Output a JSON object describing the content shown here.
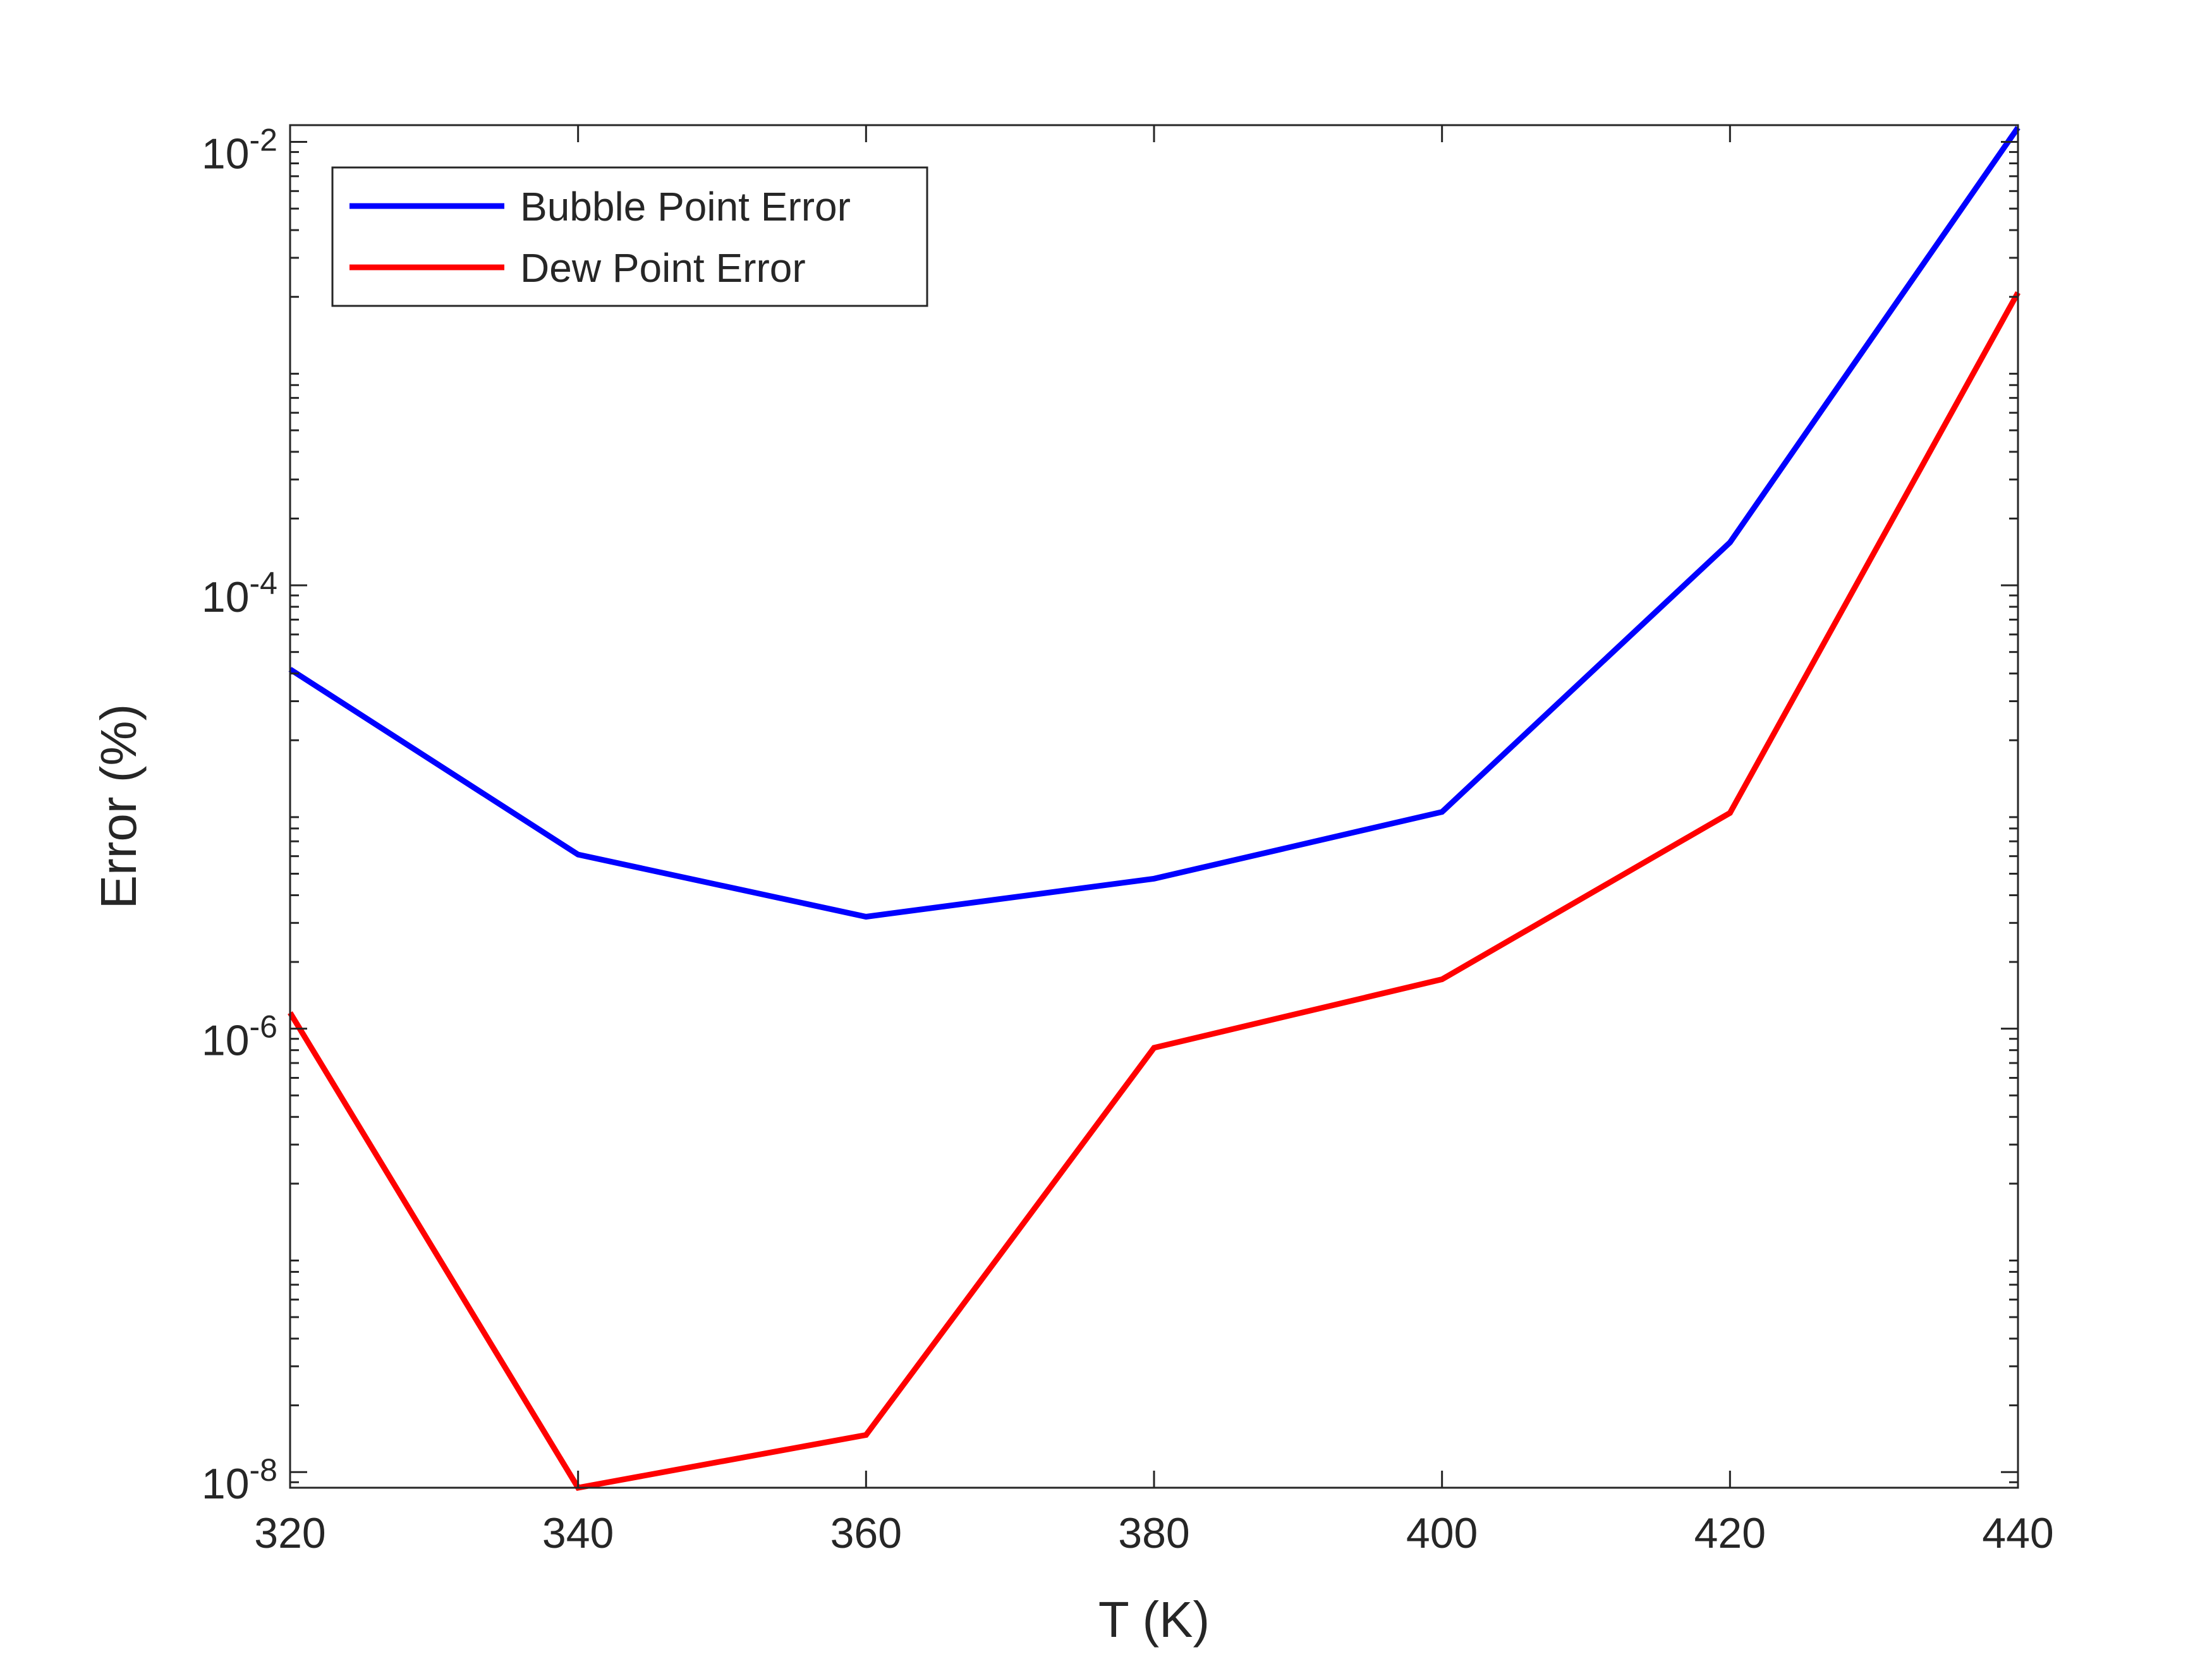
{
  "chart_data": {
    "type": "line",
    "x_label": "T (K)",
    "y_label": "Error (%)",
    "x": [
      320,
      340,
      360,
      380,
      400,
      420,
      440
    ],
    "series": [
      {
        "name": "Bubble Point Error",
        "color": "#0000ff",
        "values": [
          4.18e-05,
          6.1e-06,
          3.2e-06,
          4.75e-06,
          9.5e-06,
          0.000156,
          0.0116
        ]
      },
      {
        "name": "Dew Point Error",
        "color": "#ff0000",
        "values": [
          1.18e-06,
          8.5e-09,
          1.47e-08,
          8.2e-07,
          1.67e-06,
          9.4e-06,
          0.00209
        ]
      }
    ],
    "xlim": [
      320,
      440
    ],
    "xticks": [
      320,
      340,
      360,
      380,
      400,
      420,
      440
    ],
    "ylim": [
      8.5e-09,
      0.0119
    ],
    "yticks": [
      {
        "value": 1e-08,
        "label": "10^-8"
      },
      {
        "value": 1e-06,
        "label": "10^-6"
      },
      {
        "value": 0.0001,
        "label": "10^-4"
      },
      {
        "value": 0.01,
        "label": "10^-2"
      }
    ],
    "y_scale": "log",
    "minor_ticks": true,
    "grid": false,
    "legend_position": "upper left"
  }
}
